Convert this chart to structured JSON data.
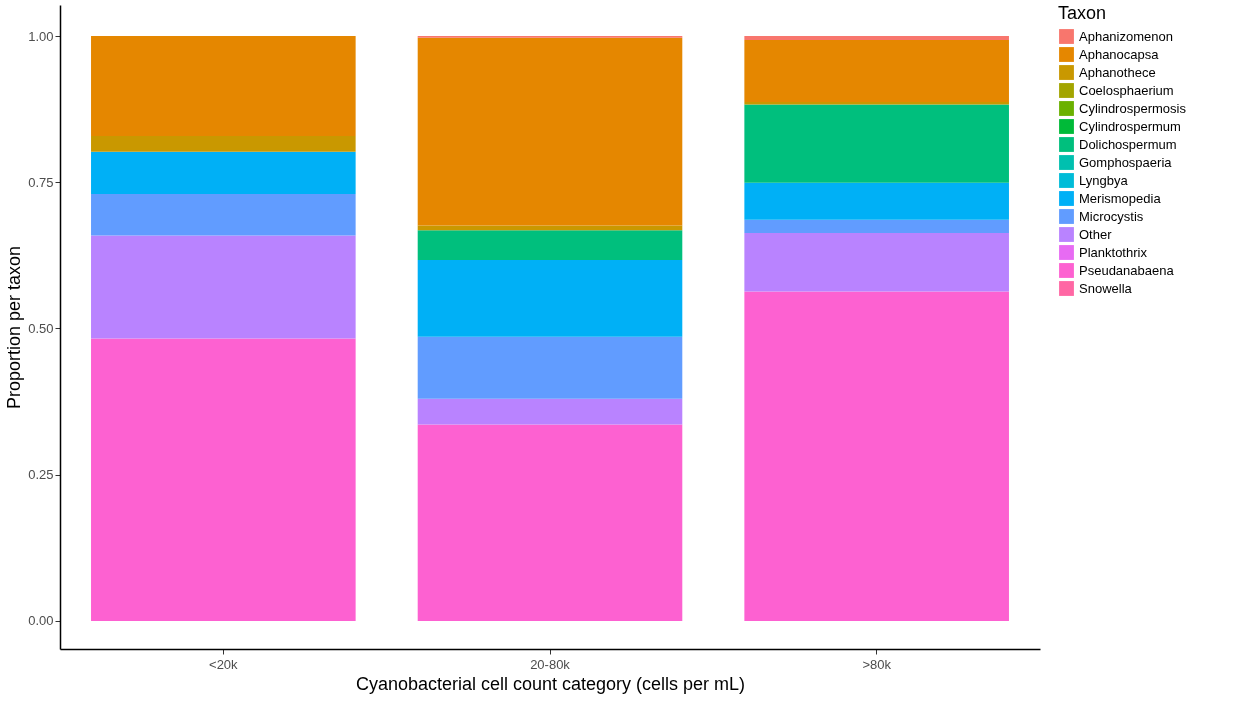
{
  "chart_data": {
    "type": "bar",
    "stacked": true,
    "xlabel": "Cyanobacterial cell count category (cells per mL)",
    "ylabel": "Proportion per taxon",
    "legend_title": "Taxon",
    "legend": "right",
    "grid": false,
    "categories": [
      "<20k",
      "20-80k",
      ">80k"
    ],
    "ylim": [
      -0.048,
      1.053
    ],
    "yticks": [
      {
        "value": 0,
        "label": "0.00"
      },
      {
        "value": 0.25,
        "label": "0.25"
      },
      {
        "value": 0.5,
        "label": "0.50"
      },
      {
        "value": 0.75,
        "label": "0.75"
      },
      {
        "value": 1,
        "label": "1.00"
      }
    ],
    "series": [
      {
        "name": "Snowella",
        "color": "#ff67a4",
        "values": [
          null,
          null,
          null
        ]
      },
      {
        "name": "Pseudanabaena",
        "color": "#fd61d1",
        "values": [
          0.483,
          0.336,
          0.563
        ]
      },
      {
        "name": "Planktothrix",
        "color": "#e76bf3",
        "values": [
          null,
          null,
          null
        ]
      },
      {
        "name": "Other",
        "color": "#b983ff",
        "values": [
          0.176,
          0.044,
          0.1
        ]
      },
      {
        "name": "Microcystis",
        "color": "#619cff",
        "values": [
          0.071,
          0.106,
          0.023
        ]
      },
      {
        "name": "Merismopedia",
        "color": "#00b0f6",
        "values": [
          0.072,
          0.131,
          0.063
        ]
      },
      {
        "name": "Lyngbya",
        "color": "#00bcd8",
        "values": [
          null,
          null,
          null
        ]
      },
      {
        "name": "Gomphospaeria",
        "color": "#00c0af",
        "values": [
          null,
          null,
          null
        ]
      },
      {
        "name": "Dolichospermum",
        "color": "#00bf7d",
        "values": [
          null,
          0.051,
          0.134
        ]
      },
      {
        "name": "Cylindrospermum",
        "color": "#00ba38",
        "values": [
          null,
          null,
          null
        ]
      },
      {
        "name": "Cylindrospermosis",
        "color": "#6bb100",
        "values": [
          null,
          null,
          null
        ]
      },
      {
        "name": "Coelosphaerium",
        "color": "#a3a500",
        "values": [
          null,
          null,
          null
        ]
      },
      {
        "name": "Aphanothece",
        "color": "#c99800",
        "values": [
          0.027,
          0.008,
          0.004
        ]
      },
      {
        "name": "Aphanocapsa",
        "color": "#e58700",
        "values": [
          0.171,
          0.321,
          0.106
        ]
      },
      {
        "name": "Aphanizomenon",
        "color": "#f8766d",
        "values": [
          null,
          0.003,
          0.007
        ]
      }
    ]
  }
}
